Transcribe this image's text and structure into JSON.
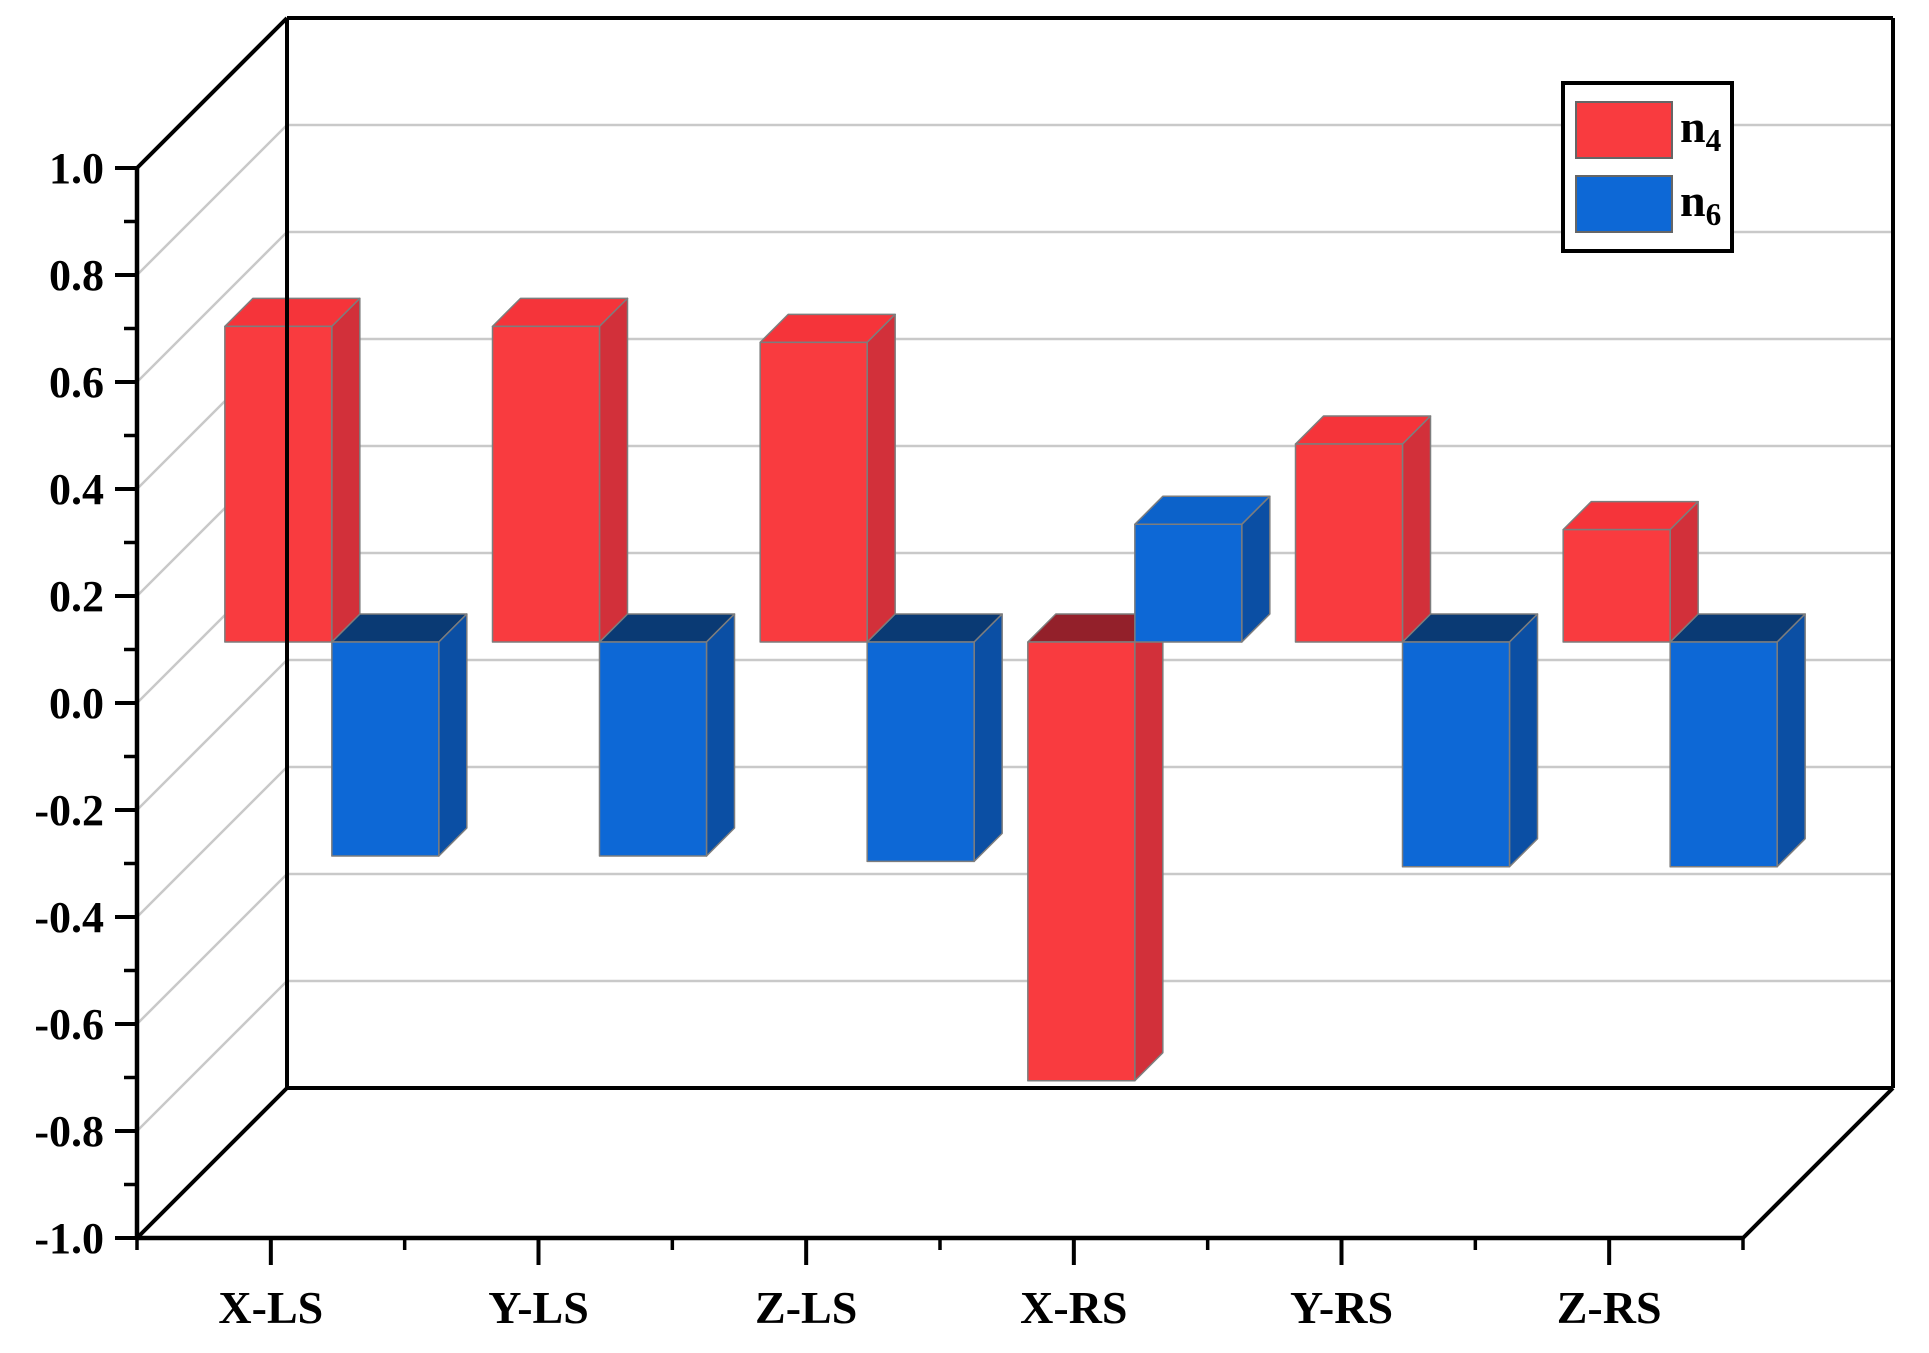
{
  "chart_data": {
    "type": "bar",
    "projection": "3d-oblique",
    "title": "",
    "categories": [
      "X-LS",
      "Y-LS",
      "Z-LS",
      "X-RS",
      "Y-RS",
      "Z-RS"
    ],
    "series": [
      {
        "name": "n4",
        "label_base": "n",
        "label_sub": "4",
        "values": [
          0.59,
          0.59,
          0.56,
          -0.82,
          0.37,
          0.21
        ],
        "color": "#f93b3f",
        "color_side": "#d2303a",
        "color_top_positive": "#f5343a",
        "color_top_negative": "#93202a"
      },
      {
        "name": "n6",
        "label_base": "n",
        "label_sub": "6",
        "values": [
          -0.4,
          -0.4,
          -0.41,
          0.22,
          -0.42,
          -0.42
        ],
        "color": "#0d68d6",
        "color_side": "#0b4fa4",
        "color_top_positive": "#0c62ca",
        "color_top_negative": "#0a3a74"
      }
    ],
    "y_axis": {
      "min": -1.0,
      "max": 1.0,
      "major_step": 0.2,
      "minor_step": 0.1,
      "tick_labels": [
        "1.0",
        "0.8",
        "0.6",
        "0.4",
        "0.2",
        "0.0",
        "-0.2",
        "-0.4",
        "-0.6",
        "-0.8",
        "-1.0"
      ]
    },
    "x_axis": {
      "tick_labels": [
        "X-LS",
        "Y-LS",
        "Z-LS",
        "X-RS",
        "Y-RS",
        "Z-RS"
      ]
    },
    "grid": {
      "show": true,
      "color": "#c9c9c9"
    },
    "frame_color": "#000000",
    "background_color": "#ffffff",
    "bar_outline_color": "#7d7d7d",
    "legend": {
      "position": "top-right"
    }
  }
}
